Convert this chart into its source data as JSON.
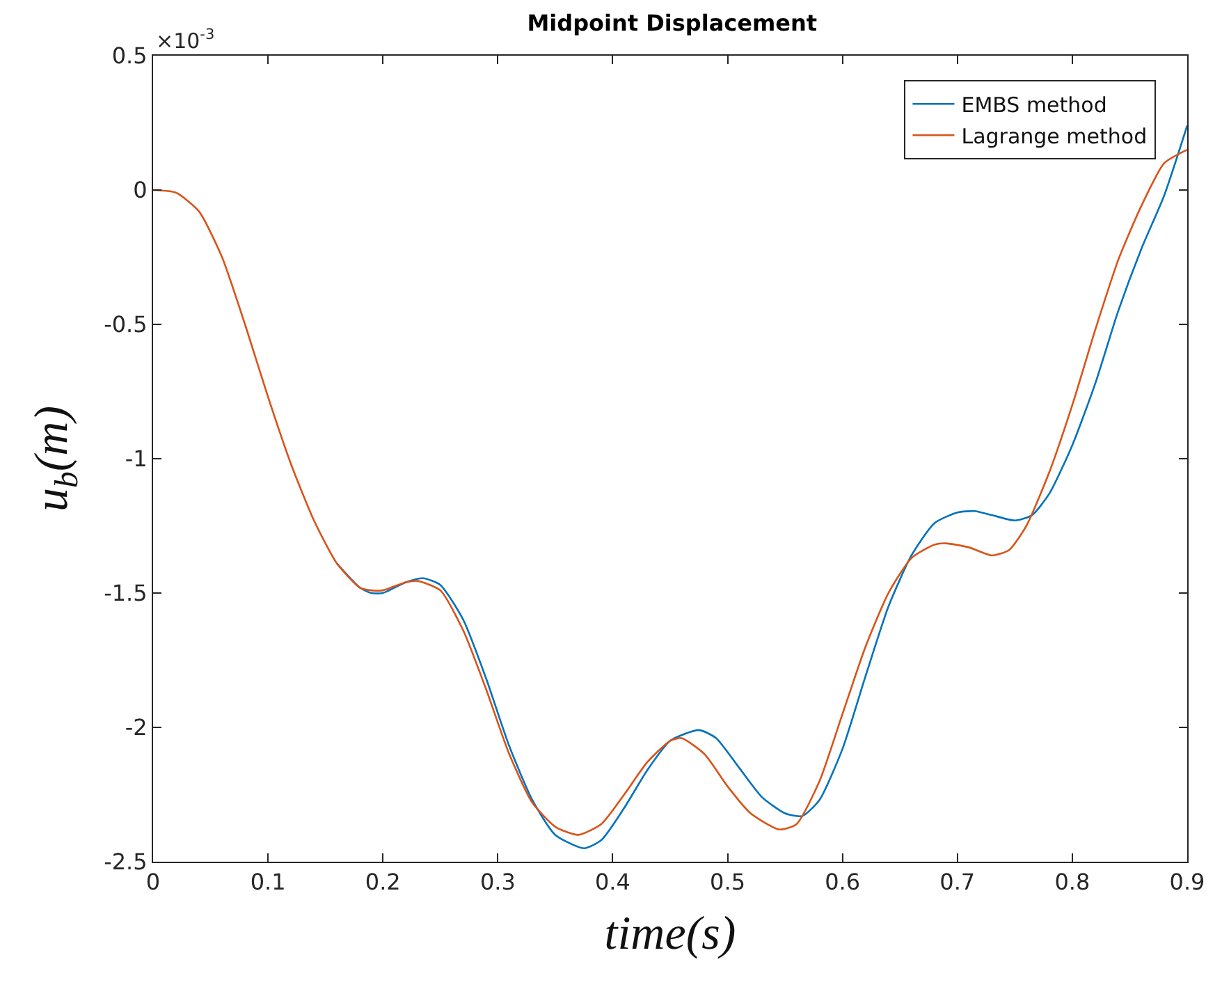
{
  "chart_data": {
    "type": "line",
    "title": "Midpoint Displacement",
    "xlabel": "time(s)",
    "ylabel": "u$_{b}$(m)",
    "annotations": [
      "×10$^{-3}$"
    ],
    "xlim": [
      0,
      0.9
    ],
    "xticks": [
      0,
      0.1,
      0.2,
      0.3,
      0.4,
      0.5,
      0.6,
      0.7,
      0.8,
      0.9
    ],
    "ylim": [
      -2.5,
      0.5
    ],
    "yticks": [
      -2.5,
      -2,
      -1.5,
      -1,
      -0.5,
      0,
      0.5
    ],
    "grid": false,
    "legend": "top right",
    "marker": "none",
    "line_style": "solid",
    "series": [
      {
        "name": "EMBS method",
        "color": "#0072bd",
        "x": [
          0.16,
          0.18,
          0.19,
          0.2,
          0.22,
          0.235,
          0.25,
          0.27,
          0.29,
          0.31,
          0.33,
          0.35,
          0.375,
          0.39,
          0.41,
          0.43,
          0.45,
          0.475,
          0.49,
          0.51,
          0.53,
          0.55,
          0.565,
          0.58,
          0.6,
          0.62,
          0.64,
          0.66,
          0.68,
          0.7,
          0.715,
          0.73,
          0.75,
          0.765,
          0.78,
          0.8,
          0.82,
          0.84,
          0.86,
          0.88,
          0.9
        ],
        "values": [
          -1.39,
          -1.48,
          -1.5,
          -1.5,
          -1.46,
          -1.445,
          -1.47,
          -1.6,
          -1.82,
          -2.07,
          -2.27,
          -2.4,
          -2.45,
          -2.42,
          -2.3,
          -2.16,
          -2.05,
          -2.01,
          -2.04,
          -2.15,
          -2.26,
          -2.32,
          -2.33,
          -2.27,
          -2.08,
          -1.81,
          -1.55,
          -1.36,
          -1.24,
          -1.2,
          -1.195,
          -1.21,
          -1.23,
          -1.21,
          -1.13,
          -0.95,
          -0.72,
          -0.45,
          -0.22,
          -0.02,
          0.24
        ]
      },
      {
        "name": "Lagrange method",
        "color": "#d95319",
        "x": [
          0,
          0.02,
          0.04,
          0.06,
          0.08,
          0.1,
          0.12,
          0.14,
          0.16,
          0.18,
          0.19,
          0.2,
          0.22,
          0.23,
          0.25,
          0.27,
          0.29,
          0.31,
          0.33,
          0.35,
          0.37,
          0.39,
          0.41,
          0.43,
          0.45,
          0.46,
          0.48,
          0.5,
          0.52,
          0.545,
          0.56,
          0.58,
          0.6,
          0.62,
          0.64,
          0.66,
          0.68,
          0.69,
          0.71,
          0.73,
          0.745,
          0.76,
          0.78,
          0.8,
          0.82,
          0.84,
          0.86,
          0.88,
          0.9
        ],
        "values": [
          0,
          -0.01,
          -0.08,
          -0.25,
          -0.5,
          -0.77,
          -1.02,
          -1.23,
          -1.39,
          -1.48,
          -1.49,
          -1.49,
          -1.46,
          -1.455,
          -1.49,
          -1.64,
          -1.86,
          -2.1,
          -2.28,
          -2.37,
          -2.4,
          -2.36,
          -2.25,
          -2.13,
          -2.05,
          -2.04,
          -2.1,
          -2.22,
          -2.32,
          -2.38,
          -2.36,
          -2.2,
          -1.95,
          -1.7,
          -1.5,
          -1.37,
          -1.32,
          -1.315,
          -1.33,
          -1.36,
          -1.34,
          -1.25,
          -1.05,
          -0.8,
          -0.52,
          -0.26,
          -0.06,
          0.1,
          0.15
        ]
      }
    ]
  }
}
